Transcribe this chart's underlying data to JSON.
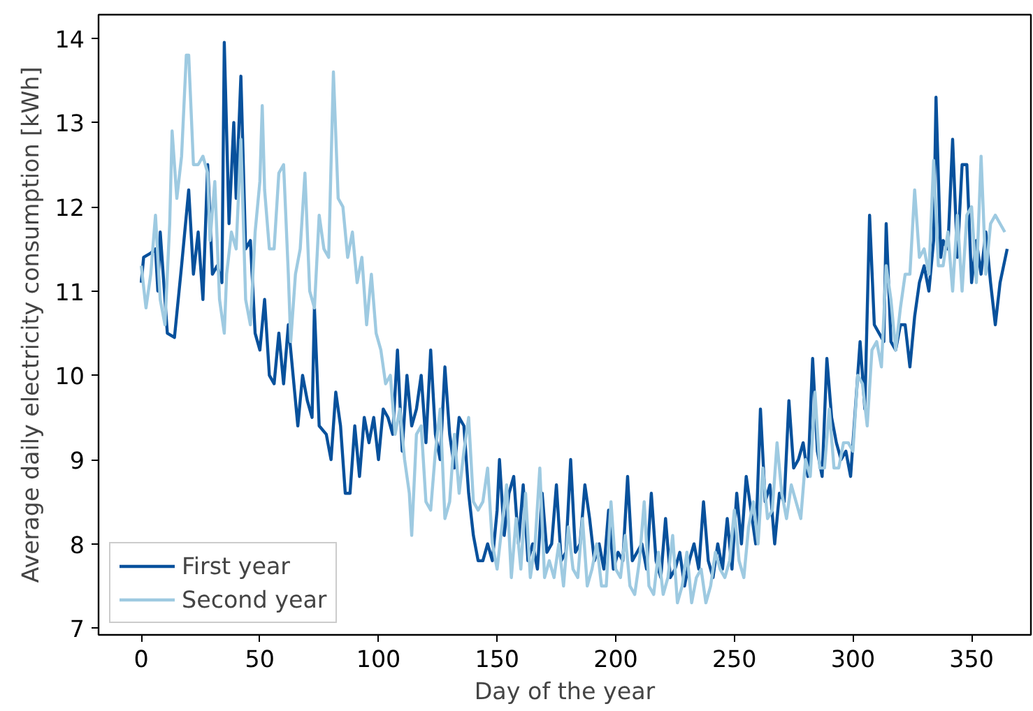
{
  "chart_data": {
    "type": "line",
    "xlabel": "Day of the year",
    "ylabel": "Average daily electricity consumption [kWh]",
    "xlim": [
      -18,
      375
    ],
    "ylim": [
      6.92,
      14.28
    ],
    "xticks": [
      0,
      50,
      100,
      150,
      200,
      250,
      300,
      350
    ],
    "yticks": [
      7,
      8,
      9,
      10,
      11,
      12,
      13,
      14
    ],
    "grid": false,
    "legend": "bottom left",
    "line_style": "solid",
    "series": [
      {
        "name": "First year",
        "color": "#08519c",
        "x": [
          0,
          1,
          4,
          6,
          7,
          8,
          11,
          14,
          17,
          20,
          22,
          24,
          26,
          28,
          30,
          32,
          34,
          35,
          37,
          39,
          40,
          42,
          44,
          46,
          48,
          50,
          52,
          54,
          56,
          58,
          60,
          62,
          64,
          66,
          68,
          70,
          72,
          73,
          75,
          78,
          80,
          82,
          84,
          86,
          88,
          90,
          92,
          94,
          96,
          98,
          100,
          102,
          104,
          106,
          108,
          110,
          112,
          114,
          116,
          118,
          120,
          122,
          124,
          126,
          128,
          130,
          132,
          134,
          136,
          138,
          140,
          142,
          144,
          146,
          148,
          150,
          151,
          153,
          155,
          157,
          159,
          161,
          163,
          165,
          167,
          169,
          171,
          173,
          175,
          177,
          179,
          181,
          183,
          185,
          187,
          189,
          191,
          193,
          195,
          197,
          199,
          201,
          203,
          205,
          207,
          209,
          211,
          213,
          215,
          217,
          219,
          221,
          223,
          225,
          227,
          229,
          231,
          233,
          235,
          237,
          239,
          241,
          243,
          245,
          247,
          249,
          251,
          253,
          255,
          257,
          259,
          261,
          263,
          265,
          267,
          269,
          271,
          273,
          275,
          277,
          279,
          281,
          283,
          285,
          287,
          289,
          291,
          293,
          295,
          297,
          299,
          301,
          303,
          305,
          307,
          309,
          311,
          313,
          314,
          316,
          318,
          320,
          322,
          324,
          326,
          328,
          330,
          332,
          334,
          335,
          337,
          338,
          340,
          342,
          344,
          346,
          348,
          350,
          352,
          354,
          356,
          358,
          360,
          362,
          365
        ],
        "values": [
          11.1,
          11.4,
          11.45,
          11.5,
          11.0,
          11.7,
          10.5,
          10.45,
          11.3,
          12.2,
          11.2,
          11.7,
          10.9,
          12.5,
          11.2,
          11.3,
          11.1,
          13.95,
          11.8,
          13.0,
          12.1,
          13.55,
          11.5,
          11.6,
          10.5,
          10.3,
          10.9,
          10.0,
          9.9,
          10.5,
          9.9,
          10.6,
          10.0,
          9.4,
          10.0,
          9.7,
          9.5,
          10.8,
          9.4,
          9.3,
          9.0,
          9.8,
          9.4,
          8.6,
          8.6,
          9.4,
          8.8,
          9.5,
          9.2,
          9.5,
          9.0,
          9.6,
          9.5,
          9.3,
          10.3,
          9.1,
          10.0,
          9.4,
          9.6,
          10.0,
          9.2,
          10.3,
          9.3,
          9.0,
          10.1,
          9.3,
          8.9,
          9.5,
          9.4,
          8.6,
          8.1,
          7.8,
          7.8,
          8.0,
          7.8,
          8.4,
          9.0,
          8.1,
          8.6,
          8.8,
          8.0,
          8.7,
          7.8,
          8.0,
          7.7,
          8.6,
          7.9,
          8.0,
          8.7,
          7.8,
          7.9,
          9.0,
          7.9,
          8.0,
          8.7,
          8.3,
          7.8,
          8.0,
          7.7,
          8.4,
          7.7,
          7.9,
          7.8,
          8.8,
          7.8,
          7.9,
          8.0,
          7.7,
          8.6,
          7.8,
          7.6,
          8.3,
          7.6,
          7.7,
          7.9,
          7.5,
          7.8,
          8.0,
          7.7,
          8.5,
          7.8,
          7.6,
          8.0,
          7.7,
          8.3,
          7.7,
          8.6,
          8.0,
          8.8,
          8.4,
          8.0,
          9.6,
          8.5,
          8.7,
          8.0,
          8.6,
          8.5,
          9.7,
          8.9,
          9.0,
          9.2,
          8.8,
          10.2,
          9.1,
          8.8,
          10.2,
          9.5,
          9.2,
          9.0,
          9.1,
          8.8,
          9.6,
          10.4,
          9.6,
          11.9,
          10.6,
          10.5,
          10.4,
          11.8,
          10.4,
          10.3,
          10.6,
          10.6,
          10.1,
          10.7,
          11.1,
          11.3,
          11.0,
          11.6,
          13.3,
          11.4,
          11.6,
          11.5,
          12.8,
          11.4,
          12.5,
          12.5,
          11.1,
          11.6,
          11.2,
          11.7,
          11.1,
          10.6,
          11.1,
          11.5
        ]
      },
      {
        "name": "Second year",
        "color": "#9ecae1",
        "x": [
          0,
          2,
          4,
          6,
          8,
          10,
          12,
          13,
          15,
          17,
          19,
          20,
          22,
          24,
          26,
          28,
          29,
          31,
          33,
          35,
          36,
          38,
          40,
          42,
          44,
          46,
          48,
          50,
          51,
          52,
          54,
          56,
          58,
          60,
          62,
          63,
          65,
          67,
          69,
          71,
          73,
          75,
          77,
          79,
          81,
          83,
          85,
          87,
          89,
          91,
          93,
          95,
          97,
          99,
          101,
          103,
          105,
          107,
          109,
          111,
          113,
          114,
          116,
          118,
          120,
          122,
          124,
          126,
          128,
          130,
          132,
          134,
          136,
          138,
          140,
          142,
          144,
          146,
          148,
          150,
          152,
          154,
          156,
          158,
          160,
          162,
          164,
          166,
          168,
          170,
          172,
          174,
          176,
          178,
          180,
          182,
          184,
          186,
          188,
          190,
          192,
          194,
          196,
          198,
          200,
          202,
          204,
          206,
          208,
          210,
          212,
          214,
          216,
          218,
          220,
          222,
          224,
          226,
          228,
          230,
          232,
          234,
          236,
          238,
          240,
          242,
          244,
          246,
          248,
          250,
          252,
          254,
          256,
          258,
          260,
          262,
          264,
          266,
          268,
          270,
          272,
          274,
          276,
          278,
          280,
          282,
          284,
          286,
          288,
          290,
          292,
          294,
          296,
          298,
          300,
          302,
          304,
          306,
          308,
          310,
          312,
          314,
          316,
          318,
          320,
          322,
          324,
          326,
          328,
          330,
          332,
          334,
          336,
          338,
          340,
          342,
          344,
          346,
          348,
          350,
          352,
          354,
          356,
          358,
          360,
          362,
          364
        ],
        "values": [
          11.3,
          10.8,
          11.2,
          11.9,
          10.9,
          10.6,
          11.8,
          12.9,
          12.1,
          12.6,
          13.8,
          13.8,
          12.5,
          12.5,
          12.6,
          12.4,
          11.6,
          12.3,
          10.9,
          10.5,
          11.2,
          11.7,
          11.5,
          12.8,
          10.9,
          10.6,
          11.7,
          12.3,
          13.2,
          12.2,
          11.5,
          11.5,
          12.4,
          12.5,
          11.2,
          10.4,
          11.2,
          11.5,
          12.4,
          11.0,
          10.8,
          11.9,
          11.5,
          11.4,
          13.6,
          12.1,
          12.0,
          11.4,
          11.7,
          11.1,
          11.4,
          10.6,
          11.2,
          10.5,
          10.3,
          9.9,
          10.0,
          9.3,
          9.6,
          9.0,
          8.6,
          8.1,
          9.3,
          9.4,
          8.5,
          8.4,
          9.1,
          9.6,
          8.3,
          8.5,
          9.3,
          8.6,
          9.1,
          9.5,
          8.5,
          8.4,
          8.5,
          8.9,
          8.0,
          7.7,
          8.2,
          8.7,
          7.6,
          8.3,
          7.7,
          8.6,
          7.6,
          8.0,
          8.9,
          7.6,
          7.8,
          7.6,
          8.0,
          7.5,
          8.2,
          7.7,
          7.6,
          8.3,
          7.5,
          7.7,
          8.0,
          7.5,
          7.5,
          8.5,
          7.7,
          7.6,
          8.1,
          7.5,
          7.4,
          7.8,
          8.5,
          7.5,
          7.4,
          7.9,
          7.4,
          7.6,
          8.1,
          7.3,
          7.5,
          7.9,
          7.3,
          7.6,
          7.7,
          7.3,
          7.5,
          7.9,
          7.7,
          7.6,
          7.8,
          8.4,
          7.8,
          7.6,
          8.2,
          8.5,
          8.0,
          8.9,
          8.3,
          8.4,
          9.2,
          8.6,
          8.3,
          8.7,
          8.5,
          8.3,
          9.0,
          8.8,
          9.8,
          8.9,
          8.9,
          9.6,
          8.9,
          8.9,
          9.2,
          9.2,
          9.1,
          10.0,
          9.9,
          9.4,
          10.3,
          10.4,
          10.1,
          11.3,
          10.9,
          10.3,
          10.8,
          11.2,
          11.2,
          12.2,
          11.4,
          11.5,
          11.2,
          12.55,
          11.3,
          11.3,
          11.7,
          11.0,
          11.9,
          11.0,
          11.9,
          12.0,
          11.1,
          12.6,
          11.2,
          11.8,
          11.9,
          11.8,
          11.7
        ]
      }
    ]
  }
}
